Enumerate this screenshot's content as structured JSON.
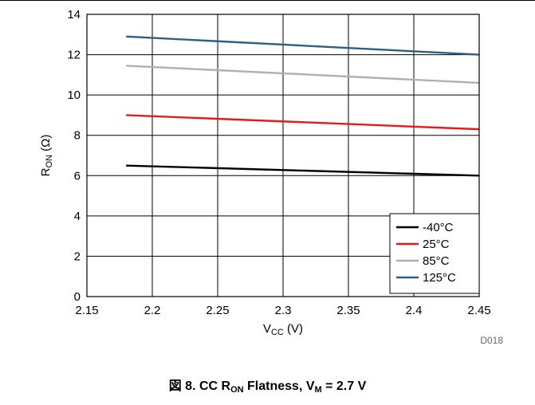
{
  "chart_data": {
    "type": "line",
    "x": [
      2.18,
      2.45
    ],
    "series": [
      {
        "name": "-40°C",
        "color": "#000000",
        "values": [
          6.5,
          6.0
        ]
      },
      {
        "name": "25°C",
        "color": "#e8191c",
        "values": [
          9.0,
          8.3
        ]
      },
      {
        "name": "85°C",
        "color": "#b0b0b0",
        "values": [
          11.45,
          10.6
        ]
      },
      {
        "name": "125°C",
        "color": "#2e5f82",
        "values": [
          12.9,
          12.0
        ]
      }
    ],
    "xlim": [
      2.15,
      2.45
    ],
    "ylim": [
      0,
      14
    ],
    "x_ticks": [
      "2.15",
      "2.2",
      "2.25",
      "2.3",
      "2.35",
      "2.4",
      "2.45"
    ],
    "y_ticks": [
      "0",
      "2",
      "4",
      "6",
      "8",
      "10",
      "12",
      "14"
    ],
    "xlabel": {
      "main": "V",
      "sub": "CC",
      "rest": " (V)"
    },
    "ylabel": {
      "main": "R",
      "sub": "ON",
      "rest": " (Ω)"
    },
    "grid": true,
    "legend_position": "bottom-right",
    "figure_id": "D018"
  },
  "caption": {
    "prefix": "図 8. CC R",
    "sub1": "ON",
    "middle": " Flatness, V",
    "sub2": "M",
    "suffix": " = 2.7 V"
  }
}
